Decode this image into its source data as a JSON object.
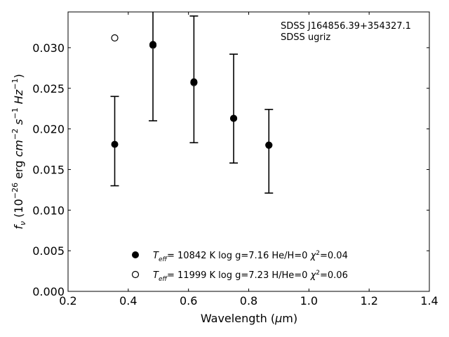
{
  "chart_data": {
    "type": "scatter",
    "xlabel": "Wavelength (μm)",
    "ylabel": "f_ν (10^-26 erg cm^-2 s^-1 Hz^-1)",
    "xlim": [
      0.2,
      1.4
    ],
    "ylim": [
      0.0,
      0.0344
    ],
    "xticks": [
      "0.2",
      "0.4",
      "0.6",
      "0.8",
      "1.0",
      "1.2",
      "1.4"
    ],
    "yticks": [
      "0.000",
      "0.005",
      "0.010",
      "0.015",
      "0.020",
      "0.025",
      "0.030"
    ],
    "grid": false,
    "annotation": [
      "SDSS J164856.39+354327.1",
      "SDSS ugriz"
    ],
    "observed": {
      "x": [
        0.355,
        0.482,
        0.618,
        0.75,
        0.867
      ],
      "y": [
        0.0181,
        0.0303,
        0.0259,
        0.0214,
        0.018
      ],
      "yerr_low": [
        0.013,
        0.021,
        0.0183,
        0.0158,
        0.0121
      ],
      "yerr_high": [
        0.024,
        0.0345,
        0.0339,
        0.0292,
        0.0224
      ]
    },
    "series": [
      {
        "name": "Teff= 10842 K  log g=7.16  He/H=0  χ2=0.04",
        "marker": "filled-circle",
        "x": [
          0.355,
          0.482,
          0.618,
          0.75,
          0.867
        ],
        "y": [
          0.0181,
          0.0304,
          0.0258,
          0.0213,
          0.018
        ]
      },
      {
        "name": "Teff= 11999 K  log g=7.23  H/He=0  χ2=0.06",
        "marker": "open-circle",
        "x": [
          0.355,
          0.482,
          0.618,
          0.75,
          0.867
        ],
        "y": [
          0.0312,
          0.0303,
          0.0257,
          0.0213,
          0.018
        ]
      }
    ]
  }
}
